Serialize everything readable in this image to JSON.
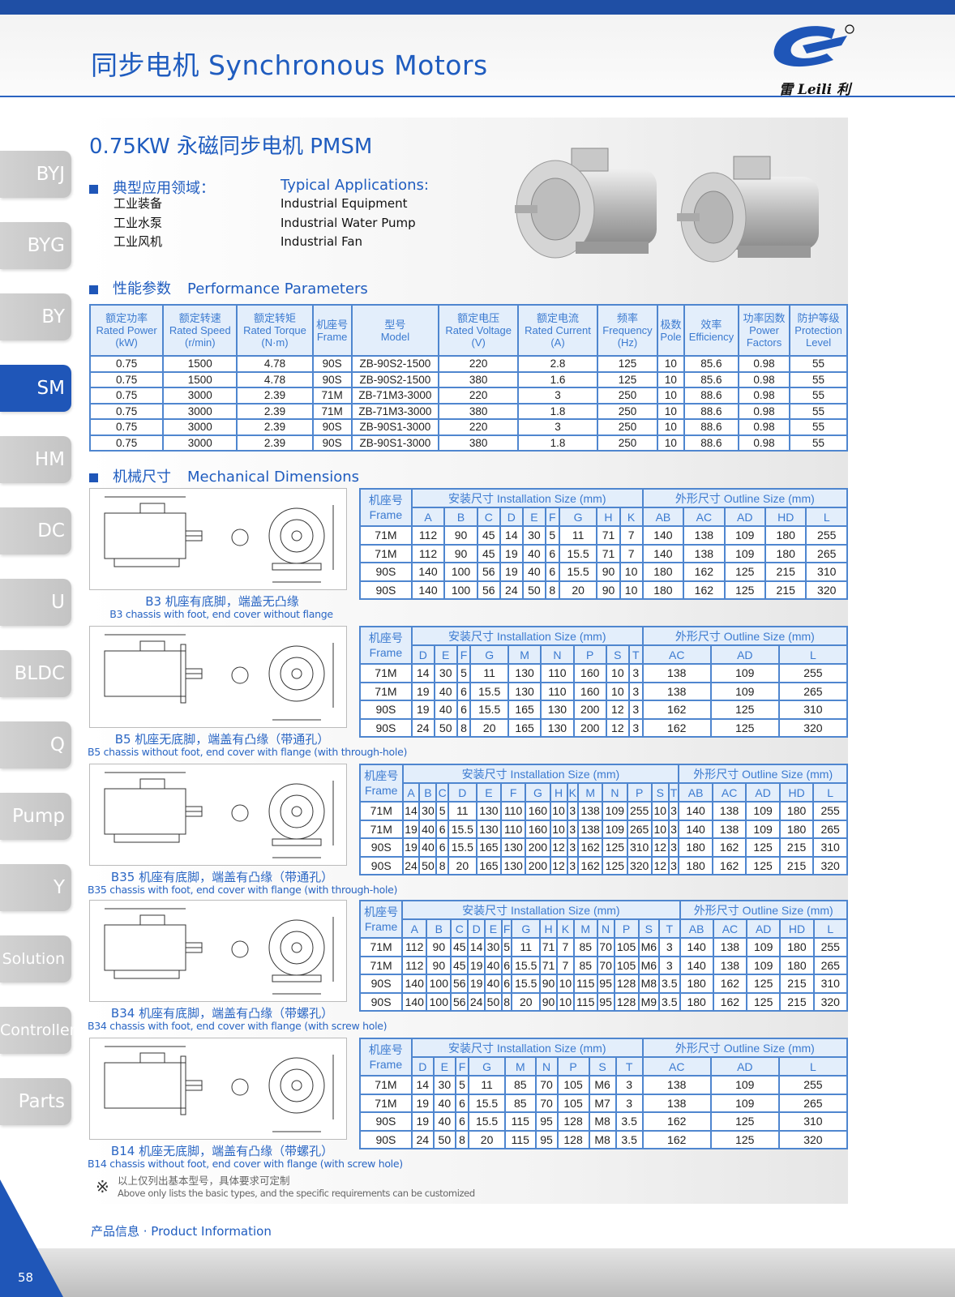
{
  "header": {
    "title": "同步电机  Synchronous Motors",
    "logo_text": "雷 Leili 利",
    "brand_color": "#1f56b8"
  },
  "sidebar": {
    "items": [
      {
        "label": "BYJ",
        "active": false
      },
      {
        "label": "BYG",
        "active": false
      },
      {
        "label": "BY",
        "active": false
      },
      {
        "label": "SM",
        "active": true
      },
      {
        "label": "HM",
        "active": false
      },
      {
        "label": "DC",
        "active": false
      },
      {
        "label": "U",
        "active": false
      },
      {
        "label": "BLDC",
        "active": false
      },
      {
        "label": "Q",
        "active": false
      },
      {
        "label": "Pump",
        "active": false
      },
      {
        "label": "Y",
        "active": false
      },
      {
        "label": "Solution",
        "active": false
      },
      {
        "label": "Controller",
        "active": false
      },
      {
        "label": "Parts",
        "active": false
      }
    ]
  },
  "product": {
    "title": "0.75KW 永磁同步电机 PMSM",
    "applications": {
      "title_cn": "典型应用领域：",
      "title_en": "Typical Applications:",
      "items_cn": [
        "工业装备",
        "工业水泵",
        "工业风机"
      ],
      "items_en": [
        "Industrial Equipment",
        "Industrial Water Pump",
        "Industrial Fan"
      ]
    }
  },
  "performance": {
    "title_cn": "性能参数",
    "title_en": "Performance Parameters",
    "headers": [
      [
        "额定功率",
        "Rated Power",
        "(kW)"
      ],
      [
        "额定转速",
        "Rated Speed",
        "(r/min)"
      ],
      [
        "额定转矩",
        "Rated Torque",
        "(N·m)"
      ],
      [
        "机座号",
        "Frame",
        ""
      ],
      [
        "型号",
        "Model",
        ""
      ],
      [
        "额定电压",
        "Rated Voltage",
        "(V)"
      ],
      [
        "额定电流",
        "Rated Current",
        "(A)"
      ],
      [
        "频率",
        "Frequency",
        "(Hz)"
      ],
      [
        "极数",
        "Pole",
        ""
      ],
      [
        "效率",
        "Efficiency",
        ""
      ],
      [
        "功率因数",
        "Power",
        "Factors"
      ],
      [
        "防护等级",
        "Protection",
        "Level"
      ]
    ],
    "rows": [
      [
        "0.75",
        "1500",
        "4.78",
        "90S",
        "ZB-90S2-1500",
        "220",
        "2.8",
        "125",
        "10",
        "85.6",
        "0.98",
        "55"
      ],
      [
        "0.75",
        "1500",
        "4.78",
        "90S",
        "ZB-90S2-1500",
        "380",
        "1.6",
        "125",
        "10",
        "85.6",
        "0.98",
        "55"
      ],
      [
        "0.75",
        "3000",
        "2.39",
        "71M",
        "ZB-71M3-3000",
        "220",
        "3",
        "250",
        "10",
        "88.6",
        "0.98",
        "55"
      ],
      [
        "0.75",
        "3000",
        "2.39",
        "71M",
        "ZB-71M3-3000",
        "380",
        "1.8",
        "250",
        "10",
        "88.6",
        "0.98",
        "55"
      ],
      [
        "0.75",
        "3000",
        "2.39",
        "90S",
        "ZB-90S1-3000",
        "220",
        "3",
        "250",
        "10",
        "88.6",
        "0.98",
        "55"
      ],
      [
        "0.75",
        "3000",
        "2.39",
        "90S",
        "ZB-90S1-3000",
        "380",
        "1.8",
        "250",
        "10",
        "88.6",
        "0.98",
        "55"
      ]
    ]
  },
  "dimensions": {
    "title_cn": "机械尺寸",
    "title_en": "Mechanical Dimensions",
    "frame_label_cn": "机座号",
    "frame_label_en": "Frame",
    "install_label": "安装尺寸 Installation Size (mm)",
    "outline_label": "外形尺寸 Outline Size (mm)",
    "blocks": [
      {
        "caption_cn": "B3 机座有底脚，端盖无凸缘",
        "caption_en": "B3 chassis with foot, end cover without flange",
        "install_cols": [
          "A",
          "B",
          "C",
          "D",
          "E",
          "F",
          "G",
          "H",
          "K"
        ],
        "outline_cols": [
          "AB",
          "AC",
          "AD",
          "HD",
          "L"
        ],
        "rows": [
          [
            "71M",
            "112",
            "90",
            "45",
            "14",
            "30",
            "5",
            "11",
            "71",
            "7",
            "140",
            "138",
            "109",
            "180",
            "255"
          ],
          [
            "71M",
            "112",
            "90",
            "45",
            "19",
            "40",
            "6",
            "15.5",
            "71",
            "7",
            "140",
            "138",
            "109",
            "180",
            "265"
          ],
          [
            "90S",
            "140",
            "100",
            "56",
            "19",
            "40",
            "6",
            "15.5",
            "90",
            "10",
            "180",
            "162",
            "125",
            "215",
            "310"
          ],
          [
            "90S",
            "140",
            "100",
            "56",
            "24",
            "50",
            "8",
            "20",
            "90",
            "10",
            "180",
            "162",
            "125",
            "215",
            "320"
          ]
        ]
      },
      {
        "caption_cn": "B5 机座无底脚，端盖有凸缘（带通孔）",
        "caption_en": "B5 chassis without foot, end cover with flange (with through-hole)",
        "install_cols": [
          "D",
          "E",
          "F",
          "G",
          "M",
          "N",
          "P",
          "S",
          "T"
        ],
        "outline_cols": [
          "AC",
          "AD",
          "L"
        ],
        "rows": [
          [
            "71M",
            "14",
            "30",
            "5",
            "11",
            "130",
            "110",
            "160",
            "10",
            "3",
            "138",
            "109",
            "255"
          ],
          [
            "71M",
            "19",
            "40",
            "6",
            "15.5",
            "130",
            "110",
            "160",
            "10",
            "3",
            "138",
            "109",
            "265"
          ],
          [
            "90S",
            "19",
            "40",
            "6",
            "15.5",
            "165",
            "130",
            "200",
            "12",
            "3",
            "162",
            "125",
            "310"
          ],
          [
            "90S",
            "24",
            "50",
            "8",
            "20",
            "165",
            "130",
            "200",
            "12",
            "3",
            "162",
            "125",
            "320"
          ]
        ]
      },
      {
        "caption_cn": "B35 机座有底脚，端盖有凸缘（带通孔）",
        "caption_en": "B35 chassis with foot, end cover with flange (with through-hole)",
        "install_cols": [
          "A",
          "B",
          "C",
          "D",
          "E",
          "F",
          "G",
          "H",
          "K",
          "M",
          "N",
          "P",
          "S",
          "T"
        ],
        "outline_cols": [
          "AB",
          "AC",
          "AD",
          "HD",
          "L"
        ],
        "rows": [
          [
            "71M",
            "14",
            "30",
            "5",
            "11",
            "130",
            "110",
            "160",
            "10",
            "3",
            "138",
            "109",
            "255",
            "10",
            "3",
            "140",
            "138",
            "109",
            "180",
            "255"
          ],
          [
            "71M",
            "19",
            "40",
            "6",
            "15.5",
            "130",
            "110",
            "160",
            "10",
            "3",
            "138",
            "109",
            "265",
            "10",
            "3",
            "140",
            "138",
            "109",
            "180",
            "265"
          ],
          [
            "90S",
            "19",
            "40",
            "6",
            "15.5",
            "165",
            "130",
            "200",
            "12",
            "3",
            "162",
            "125",
            "310",
            "12",
            "3",
            "180",
            "162",
            "125",
            "215",
            "310"
          ],
          [
            "90S",
            "24",
            "50",
            "8",
            "20",
            "165",
            "130",
            "200",
            "12",
            "3",
            "162",
            "125",
            "320",
            "12",
            "3",
            "180",
            "162",
            "125",
            "215",
            "320"
          ]
        ]
      },
      {
        "caption_cn": "B34 机座有底脚，端盖有凸缘（带螺孔）",
        "caption_en": "B34 chassis with foot, end cover with flange (with screw hole)",
        "install_cols": [
          "A",
          "B",
          "C",
          "D",
          "E",
          "F",
          "G",
          "H",
          "K",
          "M",
          "N",
          "P",
          "S",
          "T"
        ],
        "outline_cols": [
          "AB",
          "AC",
          "AD",
          "HD",
          "L"
        ],
        "rows": [
          [
            "71M",
            "112",
            "90",
            "45",
            "14",
            "30",
            "5",
            "11",
            "71",
            "7",
            "85",
            "70",
            "105",
            "M6",
            "3",
            "140",
            "138",
            "109",
            "180",
            "255"
          ],
          [
            "71M",
            "112",
            "90",
            "45",
            "19",
            "40",
            "6",
            "15.5",
            "71",
            "7",
            "85",
            "70",
            "105",
            "M6",
            "3",
            "140",
            "138",
            "109",
            "180",
            "265"
          ],
          [
            "90S",
            "140",
            "100",
            "56",
            "19",
            "40",
            "6",
            "15.5",
            "90",
            "10",
            "115",
            "95",
            "128",
            "M8",
            "3.5",
            "180",
            "162",
            "125",
            "215",
            "310"
          ],
          [
            "90S",
            "140",
            "100",
            "56",
            "24",
            "50",
            "8",
            "20",
            "90",
            "10",
            "115",
            "95",
            "128",
            "M9",
            "3.5",
            "180",
            "162",
            "125",
            "215",
            "320"
          ]
        ]
      },
      {
        "caption_cn": "B14 机座无底脚，端盖有凸缘（带螺孔）",
        "caption_en": "B14 chassis without foot, end cover with flange (with screw hole)",
        "install_cols": [
          "D",
          "E",
          "F",
          "G",
          "M",
          "N",
          "P",
          "S",
          "T"
        ],
        "outline_cols": [
          "AC",
          "AD",
          "L"
        ],
        "rows": [
          [
            "71M",
            "14",
            "30",
            "5",
            "11",
            "85",
            "70",
            "105",
            "M6",
            "3",
            "138",
            "109",
            "255"
          ],
          [
            "71M",
            "19",
            "40",
            "6",
            "15.5",
            "85",
            "70",
            "105",
            "M7",
            "3",
            "138",
            "109",
            "265"
          ],
          [
            "90S",
            "19",
            "40",
            "6",
            "15.5",
            "115",
            "95",
            "128",
            "M8",
            "3.5",
            "162",
            "125",
            "310"
          ],
          [
            "90S",
            "24",
            "50",
            "8",
            "20",
            "115",
            "95",
            "128",
            "M8",
            "3.5",
            "162",
            "125",
            "320"
          ]
        ]
      }
    ]
  },
  "note": {
    "symbol": "※",
    "text_cn": "以上仅列出基本型号，具体要求可定制",
    "text_en": "Above only lists the basic types, and the specific requirements can be customized"
  },
  "footer": {
    "label": "产品信息 · Product Information",
    "page_number": "58"
  }
}
